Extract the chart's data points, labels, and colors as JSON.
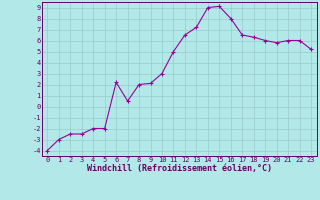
{
  "x": [
    0,
    1,
    2,
    3,
    4,
    5,
    6,
    7,
    8,
    9,
    10,
    11,
    12,
    13,
    14,
    15,
    16,
    17,
    18,
    19,
    20,
    21,
    22,
    23
  ],
  "y": [
    -4,
    -3,
    -2.5,
    -2.5,
    -2,
    -2,
    2.2,
    0.5,
    2,
    2.1,
    3,
    5,
    6.5,
    7.2,
    9,
    9.1,
    8,
    6.5,
    6.3,
    6,
    5.8,
    6,
    6,
    5.2
  ],
  "line_color": "#990099",
  "marker": "+",
  "marker_size": 3,
  "marker_lw": 0.8,
  "bg_color": "#b3e8e8",
  "grid_color": "#99cccc",
  "xlabel": "Windchill (Refroidissement éolien,°C)",
  "xlim": [
    -0.5,
    23.5
  ],
  "ylim": [
    -4.5,
    9.5
  ],
  "yticks": [
    -4,
    -3,
    -2,
    -1,
    0,
    1,
    2,
    3,
    4,
    5,
    6,
    7,
    8,
    9
  ],
  "xticks": [
    0,
    1,
    2,
    3,
    4,
    5,
    6,
    7,
    8,
    9,
    10,
    11,
    12,
    13,
    14,
    15,
    16,
    17,
    18,
    19,
    20,
    21,
    22,
    23
  ],
  "tick_fontsize": 5.0,
  "label_fontsize": 6.0,
  "line_width": 0.8,
  "axis_color": "#660066",
  "spine_color": "#660066",
  "spine_lw": 0.7
}
